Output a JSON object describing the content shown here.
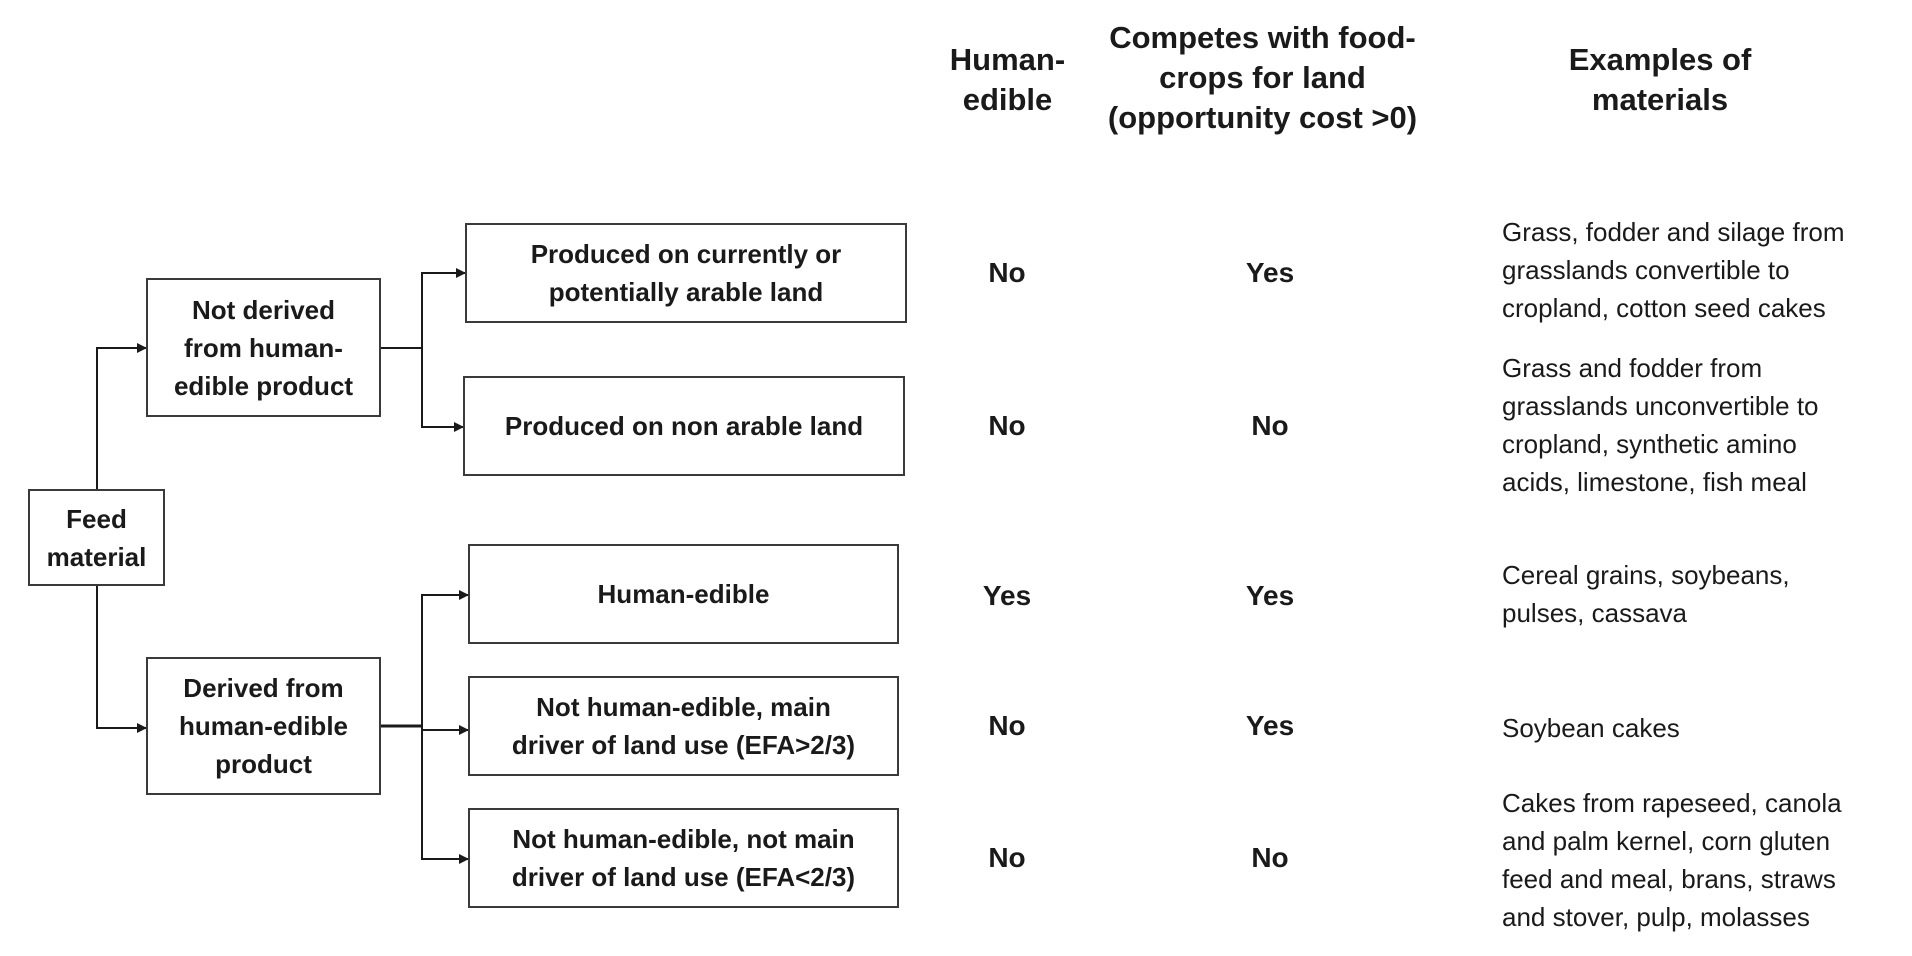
{
  "headers": {
    "human_edible": "Human-\nedible",
    "competes": "Competes with food-\ncrops for land\n(opportunity cost >0)",
    "examples": "Examples of\nmaterials"
  },
  "root": "Feed\nmaterial",
  "groups": {
    "not_derived": "Not derived\nfrom human-\nedible product",
    "derived": "Derived from\nhuman-edible\nproduct"
  },
  "categories": [
    {
      "label": "Produced on currently or\npotentially arable land",
      "human_edible": "No",
      "competes": "Yes",
      "examples": "Grass, fodder and silage from\ngrasslands convertible to\ncropland, cotton seed cakes"
    },
    {
      "label": "Produced on non arable land",
      "human_edible": "No",
      "competes": "No",
      "examples": "Grass and fodder from\ngrasslands unconvertible to\ncropland, synthetic amino\nacids, limestone, fish meal"
    },
    {
      "label": "Human-edible",
      "human_edible": "Yes",
      "competes": "Yes",
      "examples": "Cereal grains, soybeans,\npulses, cassava"
    },
    {
      "label": "Not human-edible, main\ndriver of land use (EFA>2/3)",
      "human_edible": "No",
      "competes": "Yes",
      "examples": "Soybean cakes"
    },
    {
      "label": "Not human-edible, not main\ndriver of land use (EFA<2/3)",
      "human_edible": "No",
      "competes": "No",
      "examples": "Cakes from rapeseed, canola\nand palm kernel, corn gluten\nfeed and meal, brans, straws\nand stover, pulp, molasses"
    }
  ]
}
